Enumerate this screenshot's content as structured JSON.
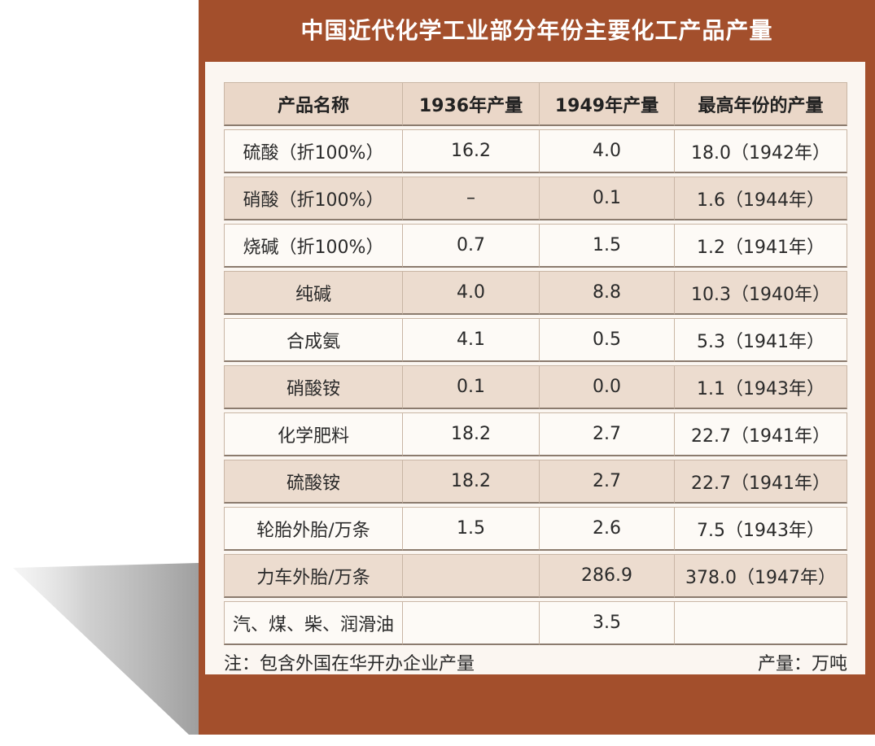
{
  "title": "中国近代化学工业部分年份主要化工产品产量",
  "table": {
    "headers": [
      "产品名称",
      "1936年产量",
      "1949年产量",
      "最高年份的产量"
    ],
    "rows": [
      [
        "硫酸（折100%）",
        "16.2",
        "4.0",
        "18.0（1942年）"
      ],
      [
        "硝酸（折100%）",
        "–",
        "0.1",
        "1.6（1944年）"
      ],
      [
        "烧碱（折100%）",
        "0.7",
        "1.5",
        "1.2（1941年）"
      ],
      [
        "纯碱",
        "4.0",
        "8.8",
        "10.3（1940年）"
      ],
      [
        "合成氨",
        "4.1",
        "0.5",
        "5.3（1941年）"
      ],
      [
        "硝酸铵",
        "0.1",
        "0.0",
        "1.1（1943年）"
      ],
      [
        "化学肥料",
        "18.2",
        "2.7",
        "22.7（1941年）"
      ],
      [
        "硫酸铵",
        "18.2",
        "2.7",
        "22.7（1941年）"
      ],
      [
        "轮胎外胎/万条",
        "1.5",
        "2.6",
        "7.5（1943年）"
      ],
      [
        "力车外胎/万条",
        "",
        "286.9",
        "378.0（1947年）"
      ],
      [
        "汽、煤、柴、润滑油",
        "",
        "3.5",
        ""
      ]
    ]
  },
  "footer": {
    "note": "注：包含外国在华开办企业产量",
    "unit": "产量：万吨"
  },
  "colors": {
    "frame": "#a34f2c",
    "panel": "#fbf6f1",
    "header_cell": "#ead7c8",
    "row_dark": "#ecdccf",
    "row_light": "#fdfaf6"
  }
}
